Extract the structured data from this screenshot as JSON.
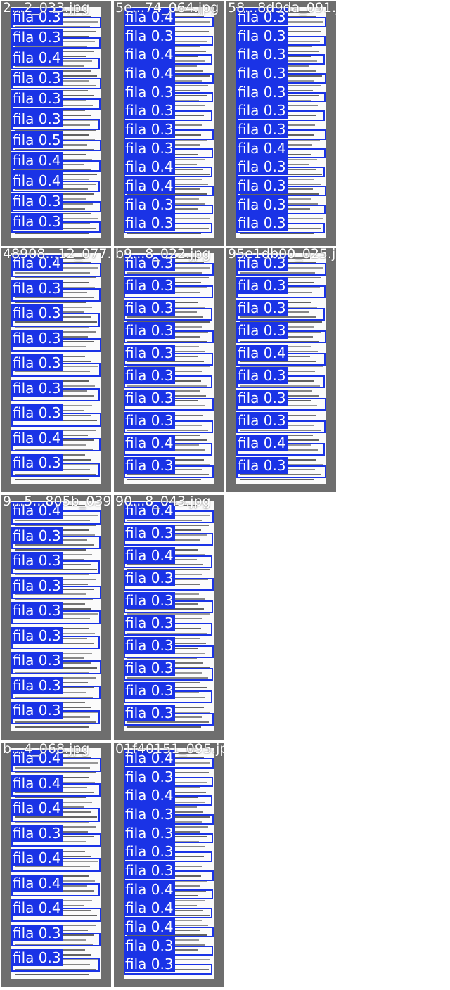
{
  "label_color": "#1a33e6",
  "tiles": [
    {
      "filename": "2...2_033.jpg",
      "detections": [
        {
          "label": "fila",
          "score": "0.3"
        },
        {
          "label": "fila",
          "score": "0.3"
        },
        {
          "label": "fila",
          "score": "0.4"
        },
        {
          "label": "fila",
          "score": "0.3"
        },
        {
          "label": "fila",
          "score": "0.3"
        },
        {
          "label": "fila",
          "score": "0.3"
        },
        {
          "label": "fila",
          "score": "0.5"
        },
        {
          "label": "fila",
          "score": "0.4"
        },
        {
          "label": "fila",
          "score": "0.4"
        },
        {
          "label": "fila",
          "score": "0.3"
        },
        {
          "label": "fila",
          "score": "0.3"
        }
      ]
    },
    {
      "filename": "5e...74_064.jpg",
      "detections": [
        {
          "label": "fila",
          "score": "0.4"
        },
        {
          "label": "fila",
          "score": "0.3"
        },
        {
          "label": "fila",
          "score": "0.4"
        },
        {
          "label": "fila",
          "score": "0.4"
        },
        {
          "label": "fila",
          "score": "0.3"
        },
        {
          "label": "fila",
          "score": "0.3"
        },
        {
          "label": "fila",
          "score": "0.3"
        },
        {
          "label": "fila",
          "score": "0.3"
        },
        {
          "label": "fila",
          "score": "0.4"
        },
        {
          "label": "fila",
          "score": "0.4"
        },
        {
          "label": "fila",
          "score": "0.3"
        },
        {
          "label": "fila",
          "score": "0.3"
        }
      ]
    },
    {
      "filename": "58...8d9da_091.jpg",
      "detections": [
        {
          "label": "fila",
          "score": "0.3"
        },
        {
          "label": "fila",
          "score": "0.3"
        },
        {
          "label": "fila",
          "score": "0.3"
        },
        {
          "label": "fila",
          "score": "0.3"
        },
        {
          "label": "fila",
          "score": "0.3"
        },
        {
          "label": "fila",
          "score": "0.3"
        },
        {
          "label": "fila",
          "score": "0.3"
        },
        {
          "label": "fila",
          "score": "0.4"
        },
        {
          "label": "fila",
          "score": "0.3"
        },
        {
          "label": "fila",
          "score": "0.3"
        },
        {
          "label": "fila",
          "score": "0.3"
        },
        {
          "label": "fila",
          "score": "0.3"
        }
      ]
    },
    {
      "filename": "48908...12_077.jpg",
      "detections": [
        {
          "label": "fila",
          "score": "0.4"
        },
        {
          "label": "fila",
          "score": "0.3"
        },
        {
          "label": "fila",
          "score": "0.3"
        },
        {
          "label": "fila",
          "score": "0.3"
        },
        {
          "label": "fila",
          "score": "0.3"
        },
        {
          "label": "fila",
          "score": "0.3"
        },
        {
          "label": "fila",
          "score": "0.3"
        },
        {
          "label": "fila",
          "score": "0.4"
        },
        {
          "label": "fila",
          "score": "0.3"
        }
      ]
    },
    {
      "filename": "b9...8_022.jpg",
      "detections": [
        {
          "label": "fila",
          "score": "0.3"
        },
        {
          "label": "fila",
          "score": "0.3"
        },
        {
          "label": "fila",
          "score": "0.3"
        },
        {
          "label": "fila",
          "score": "0.3"
        },
        {
          "label": "fila",
          "score": "0.3"
        },
        {
          "label": "fila",
          "score": "0.3"
        },
        {
          "label": "fila",
          "score": "0.3"
        },
        {
          "label": "fila",
          "score": "0.3"
        },
        {
          "label": "fila",
          "score": "0.4"
        },
        {
          "label": "fila",
          "score": "0.3"
        }
      ]
    },
    {
      "filename": "95e1db00_025.jpg",
      "detections": [
        {
          "label": "fila",
          "score": "0.3"
        },
        {
          "label": "fila",
          "score": "0.3"
        },
        {
          "label": "fila",
          "score": "0.3"
        },
        {
          "label": "fila",
          "score": "0.3"
        },
        {
          "label": "fila",
          "score": "0.4"
        },
        {
          "label": "fila",
          "score": "0.3"
        },
        {
          "label": "fila",
          "score": "0.3"
        },
        {
          "label": "fila",
          "score": "0.3"
        },
        {
          "label": "fila",
          "score": "0.4"
        },
        {
          "label": "fila",
          "score": "0.3"
        }
      ]
    },
    {
      "filename": "9...5...805b_039.jpg",
      "detections": [
        {
          "label": "fila",
          "score": "0.4"
        },
        {
          "label": "fila",
          "score": "0.3"
        },
        {
          "label": "fila",
          "score": "0.3"
        },
        {
          "label": "fila",
          "score": "0.3"
        },
        {
          "label": "fila",
          "score": "0.3"
        },
        {
          "label": "fila",
          "score": "0.3"
        },
        {
          "label": "fila",
          "score": "0.3"
        },
        {
          "label": "fila",
          "score": "0.3"
        },
        {
          "label": "fila",
          "score": "0.3"
        }
      ]
    },
    {
      "filename": "90...8_043.jpg",
      "detections": [
        {
          "label": "fila",
          "score": "0.4"
        },
        {
          "label": "fila",
          "score": "0.3"
        },
        {
          "label": "fila",
          "score": "0.4"
        },
        {
          "label": "fila",
          "score": "0.3"
        },
        {
          "label": "fila",
          "score": "0.3"
        },
        {
          "label": "fila",
          "score": "0.3"
        },
        {
          "label": "fila",
          "score": "0.3"
        },
        {
          "label": "fila",
          "score": "0.3"
        },
        {
          "label": "fila",
          "score": "0.3"
        },
        {
          "label": "fila",
          "score": "0.3"
        }
      ]
    },
    {
      "filename": "b...4_068.jpg",
      "detections": [
        {
          "label": "fila",
          "score": "0.4"
        },
        {
          "label": "fila",
          "score": "0.4"
        },
        {
          "label": "fila",
          "score": "0.4"
        },
        {
          "label": "fila",
          "score": "0.3"
        },
        {
          "label": "fila",
          "score": "0.4"
        },
        {
          "label": "fila",
          "score": "0.4"
        },
        {
          "label": "fila",
          "score": "0.4"
        },
        {
          "label": "fila",
          "score": "0.3"
        },
        {
          "label": "fila",
          "score": "0.3"
        }
      ]
    },
    {
      "filename": "01f40151_095.jpg",
      "detections": [
        {
          "label": "fila",
          "score": "0.4"
        },
        {
          "label": "fila",
          "score": "0.3"
        },
        {
          "label": "fila",
          "score": "0.4"
        },
        {
          "label": "fila",
          "score": "0.3"
        },
        {
          "label": "fila",
          "score": "0.3"
        },
        {
          "label": "fila",
          "score": "0.3"
        },
        {
          "label": "fila",
          "score": "0.3"
        },
        {
          "label": "fila",
          "score": "0.4"
        },
        {
          "label": "fila",
          "score": "0.4"
        },
        {
          "label": "fila",
          "score": "0.4"
        },
        {
          "label": "fila",
          "score": "0.3"
        },
        {
          "label": "fila",
          "score": "0.3"
        }
      ]
    }
  ]
}
